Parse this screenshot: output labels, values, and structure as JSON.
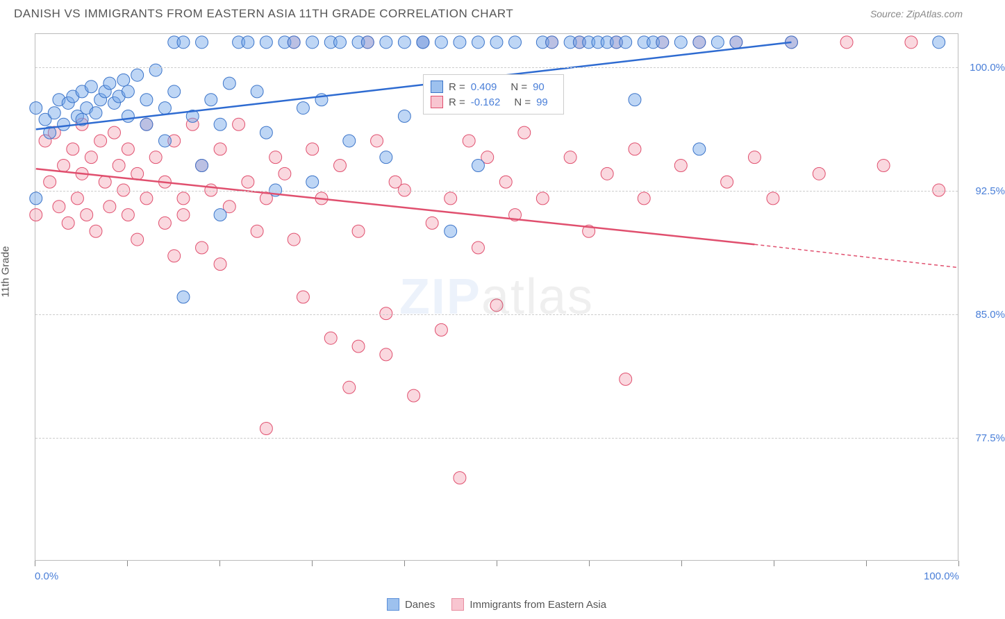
{
  "title": "DANISH VS IMMIGRANTS FROM EASTERN ASIA 11TH GRADE CORRELATION CHART",
  "source": "Source: ZipAtlas.com",
  "y_axis_label": "11th Grade",
  "watermark_bold": "ZIP",
  "watermark_thin": "atlas",
  "chart": {
    "type": "scatter",
    "xlim": [
      0,
      100
    ],
    "ylim": [
      70,
      102
    ],
    "x_tick_positions": [
      0,
      10,
      20,
      30,
      40,
      50,
      60,
      70,
      80,
      90,
      100
    ],
    "x_tick_labels_shown": {
      "0": "0.0%",
      "100": "100.0%"
    },
    "y_ticks": [
      77.5,
      85.0,
      92.5,
      100.0
    ],
    "y_tick_labels": [
      "77.5%",
      "85.0%",
      "92.5%",
      "100.0%"
    ],
    "grid_color": "#cccccc",
    "background_color": "#ffffff",
    "marker_radius": 9,
    "marker_opacity": 0.45,
    "series": [
      {
        "name": "Danes",
        "color_fill": "#6fa3e8",
        "color_stroke": "#3b74c9",
        "swatch": "#9dc1ee",
        "R": "0.409",
        "N": "90",
        "trend": {
          "x1": 0,
          "y1": 96.2,
          "x2": 82,
          "y2": 101.5,
          "stroke": "#2e6bd1",
          "width": 2.5,
          "dash_x": 82,
          "dash_y": 101.5
        },
        "points": [
          [
            0,
            97.5
          ],
          [
            1,
            96.8
          ],
          [
            1.5,
            96.0
          ],
          [
            2,
            97.2
          ],
          [
            2.5,
            98.0
          ],
          [
            3,
            96.5
          ],
          [
            3.5,
            97.8
          ],
          [
            4,
            98.2
          ],
          [
            4.5,
            97.0
          ],
          [
            5,
            98.5
          ],
          [
            5,
            96.8
          ],
          [
            5.5,
            97.5
          ],
          [
            6,
            98.8
          ],
          [
            6.5,
            97.2
          ],
          [
            7,
            98.0
          ],
          [
            7.5,
            98.5
          ],
          [
            8,
            99.0
          ],
          [
            8.5,
            97.8
          ],
          [
            9,
            98.2
          ],
          [
            9.5,
            99.2
          ],
          [
            10,
            97.0
          ],
          [
            10,
            98.5
          ],
          [
            11,
            99.5
          ],
          [
            12,
            96.5
          ],
          [
            12,
            98.0
          ],
          [
            13,
            99.8
          ],
          [
            14,
            97.5
          ],
          [
            14,
            95.5
          ],
          [
            15,
            101.5
          ],
          [
            15,
            98.5
          ],
          [
            16,
            86.0
          ],
          [
            16,
            101.5
          ],
          [
            17,
            97.0
          ],
          [
            18,
            94.0
          ],
          [
            18,
            101.5
          ],
          [
            19,
            98.0
          ],
          [
            20,
            96.5
          ],
          [
            20,
            91.0
          ],
          [
            21,
            99.0
          ],
          [
            22,
            101.5
          ],
          [
            23,
            101.5
          ],
          [
            24,
            98.5
          ],
          [
            25,
            96.0
          ],
          [
            25,
            101.5
          ],
          [
            26,
            92.5
          ],
          [
            27,
            101.5
          ],
          [
            28,
            101.5
          ],
          [
            29,
            97.5
          ],
          [
            30,
            101.5
          ],
          [
            30,
            93.0
          ],
          [
            31,
            98.0
          ],
          [
            32,
            101.5
          ],
          [
            33,
            101.5
          ],
          [
            34,
            95.5
          ],
          [
            35,
            101.5
          ],
          [
            36,
            101.5
          ],
          [
            38,
            101.5
          ],
          [
            38,
            94.5
          ],
          [
            40,
            101.5
          ],
          [
            40,
            97.0
          ],
          [
            42,
            101.5
          ],
          [
            42,
            101.5
          ],
          [
            44,
            101.5
          ],
          [
            45,
            90.0
          ],
          [
            46,
            101.5
          ],
          [
            48,
            94.0
          ],
          [
            48,
            101.5
          ],
          [
            50,
            101.5
          ],
          [
            52,
            101.5
          ],
          [
            55,
            101.5
          ],
          [
            56,
            101.5
          ],
          [
            58,
            101.5
          ],
          [
            59,
            101.5
          ],
          [
            60,
            101.5
          ],
          [
            61,
            101.5
          ],
          [
            62,
            101.5
          ],
          [
            63,
            101.5
          ],
          [
            64,
            101.5
          ],
          [
            65,
            98.0
          ],
          [
            66,
            101.5
          ],
          [
            67,
            101.5
          ],
          [
            68,
            101.5
          ],
          [
            70,
            101.5
          ],
          [
            72,
            101.5
          ],
          [
            72,
            95.0
          ],
          [
            74,
            101.5
          ],
          [
            76,
            101.5
          ],
          [
            82,
            101.5
          ],
          [
            98,
            101.5
          ],
          [
            0,
            92.0
          ]
        ]
      },
      {
        "name": "Immigrants from Eastern Asia",
        "color_fill": "#f5a9b8",
        "color_stroke": "#e04f6e",
        "swatch": "#f8c5d0",
        "R": "-0.162",
        "N": "99",
        "trend": {
          "x1": 0,
          "y1": 93.8,
          "x2": 78,
          "y2": 89.2,
          "stroke": "#e04f6e",
          "width": 2.5,
          "dash_to_x": 100,
          "dash_to_y": 87.8
        },
        "points": [
          [
            0,
            91.0
          ],
          [
            1,
            95.5
          ],
          [
            1.5,
            93.0
          ],
          [
            2,
            96.0
          ],
          [
            2.5,
            91.5
          ],
          [
            3,
            94.0
          ],
          [
            3.5,
            90.5
          ],
          [
            4,
            95.0
          ],
          [
            4.5,
            92.0
          ],
          [
            5,
            96.5
          ],
          [
            5,
            93.5
          ],
          [
            5.5,
            91.0
          ],
          [
            6,
            94.5
          ],
          [
            6.5,
            90.0
          ],
          [
            7,
            95.5
          ],
          [
            7.5,
            93.0
          ],
          [
            8,
            91.5
          ],
          [
            8.5,
            96.0
          ],
          [
            9,
            94.0
          ],
          [
            9.5,
            92.5
          ],
          [
            10,
            91.0
          ],
          [
            10,
            95.0
          ],
          [
            11,
            93.5
          ],
          [
            11,
            89.5
          ],
          [
            12,
            96.5
          ],
          [
            12,
            92.0
          ],
          [
            13,
            94.5
          ],
          [
            14,
            90.5
          ],
          [
            14,
            93.0
          ],
          [
            15,
            88.5
          ],
          [
            15,
            95.5
          ],
          [
            16,
            92.0
          ],
          [
            16,
            91.0
          ],
          [
            17,
            96.5
          ],
          [
            18,
            94.0
          ],
          [
            18,
            89.0
          ],
          [
            19,
            92.5
          ],
          [
            20,
            88.0
          ],
          [
            20,
            95.0
          ],
          [
            21,
            91.5
          ],
          [
            22,
            96.5
          ],
          [
            23,
            93.0
          ],
          [
            24,
            90.0
          ],
          [
            25,
            92.0
          ],
          [
            25,
            78.0
          ],
          [
            26,
            94.5
          ],
          [
            27,
            93.5
          ],
          [
            28,
            89.5
          ],
          [
            28,
            101.5
          ],
          [
            29,
            86.0
          ],
          [
            30,
            95.0
          ],
          [
            31,
            92.0
          ],
          [
            32,
            83.5
          ],
          [
            33,
            94.0
          ],
          [
            34,
            80.5
          ],
          [
            35,
            90.0
          ],
          [
            35,
            83.0
          ],
          [
            36,
            101.5
          ],
          [
            37,
            95.5
          ],
          [
            38,
            82.5
          ],
          [
            38,
            85.0
          ],
          [
            39,
            93.0
          ],
          [
            40,
            92.5
          ],
          [
            41,
            80.0
          ],
          [
            42,
            101.5
          ],
          [
            43,
            90.5
          ],
          [
            44,
            84.0
          ],
          [
            45,
            92.0
          ],
          [
            46,
            75.0
          ],
          [
            47,
            95.5
          ],
          [
            48,
            89.0
          ],
          [
            49,
            94.5
          ],
          [
            50,
            85.5
          ],
          [
            51,
            93.0
          ],
          [
            52,
            91.0
          ],
          [
            53,
            96.0
          ],
          [
            55,
            92.0
          ],
          [
            56,
            101.5
          ],
          [
            58,
            94.5
          ],
          [
            59,
            101.5
          ],
          [
            60,
            90.0
          ],
          [
            62,
            93.5
          ],
          [
            63,
            101.5
          ],
          [
            64,
            81.0
          ],
          [
            65,
            95.0
          ],
          [
            66,
            92.0
          ],
          [
            68,
            101.5
          ],
          [
            70,
            94.0
          ],
          [
            72,
            101.5
          ],
          [
            75,
            93.0
          ],
          [
            76,
            101.5
          ],
          [
            78,
            94.5
          ],
          [
            80,
            92.0
          ],
          [
            82,
            101.5
          ],
          [
            85,
            93.5
          ],
          [
            88,
            101.5
          ],
          [
            92,
            94.0
          ],
          [
            95,
            101.5
          ],
          [
            98,
            92.5
          ]
        ]
      }
    ],
    "legend_bottom": [
      {
        "label": "Danes",
        "swatch": "#9dc1ee",
        "border": "#5b8fd9"
      },
      {
        "label": "Immigrants from Eastern Asia",
        "swatch": "#f8c5d0",
        "border": "#e88da0"
      }
    ]
  }
}
